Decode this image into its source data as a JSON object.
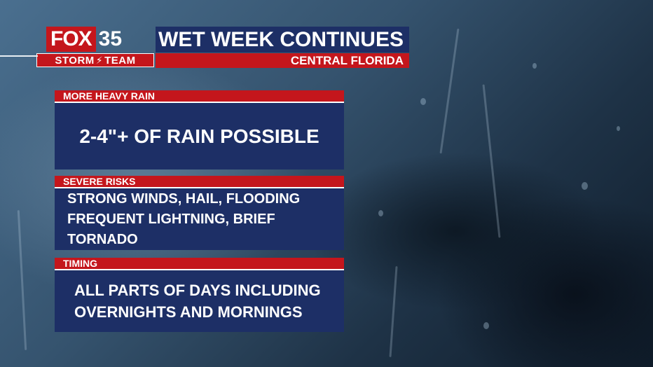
{
  "logo": {
    "brand": "FOX",
    "channel": "35",
    "team_left": "STORM",
    "team_right": "TEAM"
  },
  "header": {
    "title": "WET WEEK CONTINUES",
    "region": "CENTRAL FLORIDA"
  },
  "panels": [
    {
      "heading": "MORE HEAVY RAIN",
      "lines": [
        "2-4\"+ OF RAIN POSSIBLE"
      ]
    },
    {
      "heading": "SEVERE RISKS",
      "lines": [
        "STRONG WINDS, HAIL, FLOODING",
        "FREQUENT LIGHTNING, BRIEF TORNADO"
      ]
    },
    {
      "heading": "TIMING",
      "lines": [
        "ALL PARTS OF DAYS INCLUDING",
        "OVERNIGHTS AND MORNINGS"
      ]
    }
  ],
  "colors": {
    "brand_red": "#c4161c",
    "navy": "#1d2f66",
    "text": "#ffffff"
  },
  "icons": {
    "bolt": "lightning-bolt-icon"
  }
}
